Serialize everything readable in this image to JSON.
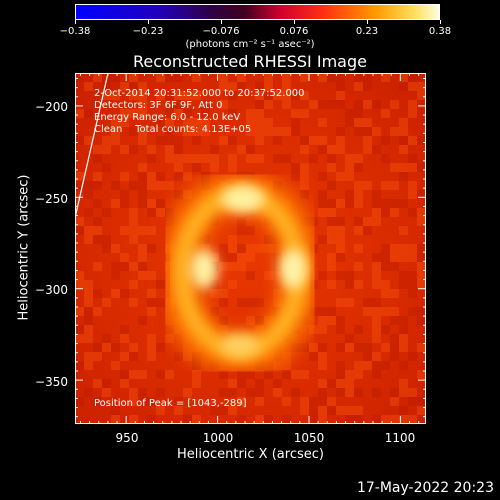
{
  "colorbar": {
    "ticks": [
      "−0.38",
      "−0.23",
      "−0.076",
      "0.076",
      "0.23",
      "0.38"
    ],
    "units": "(photons cm⁻² s⁻¹ asec⁻²)"
  },
  "title": "Reconstructed RHESSI Image",
  "info": {
    "time": "2-Oct-2014 20:31:52.000 to 20:37:52.000",
    "detectors": "Detectors: 3F 6F 9F, Att 0",
    "energy": "Energy Range: 6.0 - 12.0 keV",
    "clean": "Clean    Total counts: 4.13E+05",
    "peak": "Position of Peak = [1043,-289]"
  },
  "axes": {
    "xlabel": "Heliocentric X (arcsec)",
    "ylabel": "Heliocentric Y (arcsec)",
    "xticks": [
      "950",
      "1000",
      "1050",
      "1100"
    ],
    "yticks": [
      "−200",
      "−250",
      "−300",
      "−350"
    ]
  },
  "timestamp": "17-May-2022 20:23",
  "colors": {
    "cb_low": "#0000ff",
    "cb_mid": "#ff2020",
    "cb_high": "#ffffe8",
    "map_bg": "#d62a00",
    "ring": "#fff2a0"
  }
}
